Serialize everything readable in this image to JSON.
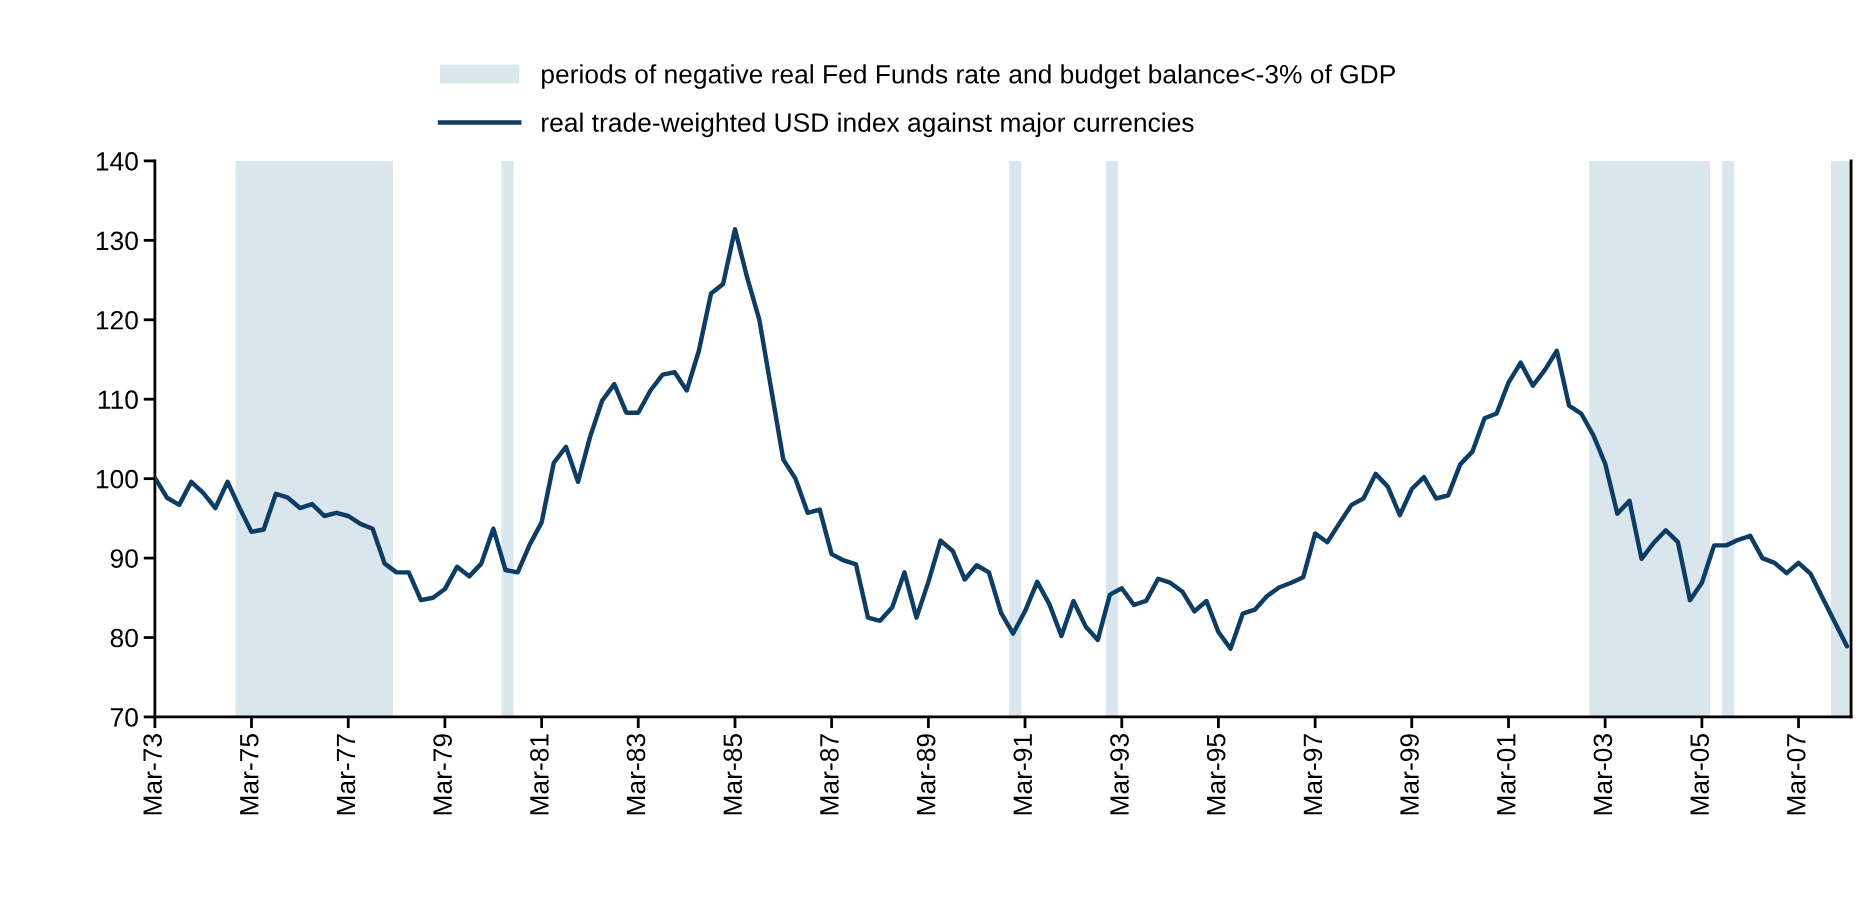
{
  "chart_data": {
    "type": "line",
    "x": [
      "1973-03",
      "1973-06",
      "1973-09",
      "1973-12",
      "1974-03",
      "1974-06",
      "1974-09",
      "1974-12",
      "1975-03",
      "1975-06",
      "1975-09",
      "1975-12",
      "1976-03",
      "1976-06",
      "1976-09",
      "1976-12",
      "1977-03",
      "1977-06",
      "1977-09",
      "1977-12",
      "1978-03",
      "1978-06",
      "1978-09",
      "1978-12",
      "1979-03",
      "1979-06",
      "1979-09",
      "1979-12",
      "1980-03",
      "1980-06",
      "1980-09",
      "1980-12",
      "1981-03",
      "1981-06",
      "1981-09",
      "1981-12",
      "1982-03",
      "1982-06",
      "1982-09",
      "1982-12",
      "1983-03",
      "1983-06",
      "1983-09",
      "1983-12",
      "1984-03",
      "1984-06",
      "1984-09",
      "1984-12",
      "1985-03",
      "1985-06",
      "1985-09",
      "1985-12",
      "1986-03",
      "1986-06",
      "1986-09",
      "1986-12",
      "1987-03",
      "1987-06",
      "1987-09",
      "1987-12",
      "1988-03",
      "1988-06",
      "1988-09",
      "1988-12",
      "1989-03",
      "1989-06",
      "1989-09",
      "1989-12",
      "1990-03",
      "1990-06",
      "1990-09",
      "1990-12",
      "1991-03",
      "1991-06",
      "1991-09",
      "1991-12",
      "1992-03",
      "1992-06",
      "1992-09",
      "1992-12",
      "1993-03",
      "1993-06",
      "1993-09",
      "1993-12",
      "1994-03",
      "1994-06",
      "1994-09",
      "1994-12",
      "1995-03",
      "1995-06",
      "1995-09",
      "1995-12",
      "1996-03",
      "1996-06",
      "1996-09",
      "1996-12",
      "1997-03",
      "1997-06",
      "1997-09",
      "1997-12",
      "1998-03",
      "1998-06",
      "1998-09",
      "1998-12",
      "1999-03",
      "1999-06",
      "1999-09",
      "1999-12",
      "2000-03",
      "2000-06",
      "2000-09",
      "2000-12",
      "2001-03",
      "2001-06",
      "2001-09",
      "2001-12",
      "2002-03",
      "2002-06",
      "2002-09",
      "2002-12",
      "2003-03",
      "2003-06",
      "2003-09",
      "2003-12",
      "2004-03",
      "2004-06",
      "2004-09",
      "2004-12",
      "2005-03",
      "2005-06",
      "2005-09",
      "2005-12",
      "2006-03",
      "2006-06",
      "2006-09",
      "2006-12",
      "2007-03",
      "2007-06",
      "2007-09",
      "2007-12",
      "2008-03"
    ],
    "series": [
      {
        "name": "real trade-weighted USD index against major currencies",
        "color": "#0d3d63",
        "values": [
          100.1,
          97.6,
          96.7,
          99.6,
          98.2,
          96.3,
          99.6,
          96.3,
          93.3,
          93.6,
          98.1,
          97.6,
          96.3,
          96.8,
          95.3,
          95.7,
          95.3,
          94.3,
          93.7,
          89.3,
          88.2,
          88.2,
          84.7,
          85.0,
          86.1,
          88.9,
          87.7,
          89.3,
          93.7,
          88.5,
          88.2,
          91.7,
          94.5,
          102.0,
          104.0,
          99.6,
          105.2,
          109.8,
          111.9,
          108.3,
          108.3,
          111.1,
          113.1,
          113.4,
          111.1,
          116.1,
          123.3,
          124.5,
          131.4,
          125.3,
          120.0,
          111.1,
          102.4,
          100.0,
          95.7,
          96.1,
          90.5,
          89.7,
          89.2,
          82.5,
          82.1,
          83.8,
          88.2,
          82.5,
          87.0,
          92.2,
          90.9,
          87.3,
          89.1,
          88.2,
          83.1,
          80.5,
          83.3,
          87.0,
          84.2,
          80.2,
          84.6,
          81.4,
          79.7,
          85.4,
          86.2,
          84.1,
          84.6,
          87.4,
          86.9,
          85.8,
          83.3,
          84.6,
          80.7,
          78.6,
          83.0,
          83.5,
          85.2,
          86.3,
          86.9,
          87.6,
          93.1,
          92.0,
          94.4,
          96.7,
          97.5,
          100.6,
          99.0,
          95.4,
          98.7,
          100.2,
          97.5,
          97.9,
          101.8,
          103.4,
          107.6,
          108.2,
          112.1,
          114.6,
          111.7,
          113.7,
          116.1,
          109.2,
          108.2,
          105.5,
          101.9,
          95.6,
          97.2,
          89.9,
          91.9,
          93.5,
          92.0,
          84.7,
          86.9,
          91.6,
          91.6,
          92.3,
          92.8,
          90.0,
          89.4,
          88.1,
          89.4,
          88.0,
          84.9,
          81.9,
          78.9
        ]
      }
    ],
    "bands": [
      {
        "axis": "x",
        "from": "1974-11",
        "to": "1978-02",
        "label": "periods of negative real Fed Funds rate and budget balance<-3% of GDP",
        "color": "#d9e6ed"
      },
      {
        "axis": "x",
        "from": "1980-05",
        "to": "1980-08",
        "color": "#d9e6ed"
      },
      {
        "axis": "x",
        "from": "1990-11",
        "to": "1991-02",
        "color": "#d9e6ed"
      },
      {
        "axis": "x",
        "from": "1992-11",
        "to": "1993-02",
        "color": "#d9e6ed"
      },
      {
        "axis": "x",
        "from": "2002-11",
        "to": "2005-05",
        "color": "#d9e6ed"
      },
      {
        "axis": "x",
        "from": "2005-08",
        "to": "2005-11",
        "color": "#d9e6ed"
      },
      {
        "axis": "x",
        "from": "2007-11",
        "to": "2008-04",
        "color": "#d9e6ed"
      }
    ],
    "xlim": [
      "1973-03",
      "2008-04"
    ],
    "xticks": [
      {
        "value": "1973-03",
        "label": "Mar-73"
      },
      {
        "value": "1975-03",
        "label": "Mar-75"
      },
      {
        "value": "1977-03",
        "label": "Mar-77"
      },
      {
        "value": "1979-03",
        "label": "Mar-79"
      },
      {
        "value": "1981-03",
        "label": "Mar-81"
      },
      {
        "value": "1983-03",
        "label": "Mar-83"
      },
      {
        "value": "1985-03",
        "label": "Mar-85"
      },
      {
        "value": "1987-03",
        "label": "Mar-87"
      },
      {
        "value": "1989-03",
        "label": "Mar-89"
      },
      {
        "value": "1991-03",
        "label": "Mar-91"
      },
      {
        "value": "1993-03",
        "label": "Mar-93"
      },
      {
        "value": "1995-03",
        "label": "Mar-95"
      },
      {
        "value": "1997-03",
        "label": "Mar-97"
      },
      {
        "value": "1999-03",
        "label": "Mar-99"
      },
      {
        "value": "2001-03",
        "label": "Mar-01"
      },
      {
        "value": "2003-03",
        "label": "Mar-03"
      },
      {
        "value": "2005-03",
        "label": "Mar-05"
      },
      {
        "value": "2007-03",
        "label": "Mar-07"
      }
    ],
    "ylim": [
      70,
      140
    ],
    "yticks": [
      70,
      80,
      90,
      100,
      110,
      120,
      130,
      140
    ],
    "grid": false,
    "legend": "top",
    "marker": "none",
    "line_style": "solid"
  }
}
